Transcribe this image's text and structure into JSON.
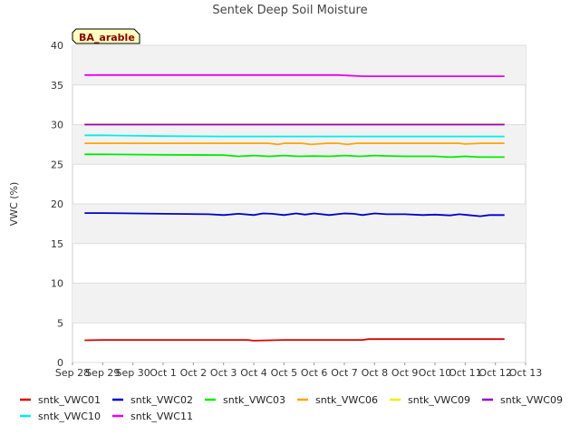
{
  "chart_data": {
    "type": "line",
    "title": "Sentek Deep Soil Moisture",
    "ylabel": "VWC (%)",
    "xlabel": "",
    "badge": "BA_arable",
    "ylim": [
      0,
      40
    ],
    "yticks": [
      "0",
      "5",
      "10",
      "15",
      "20",
      "25",
      "30",
      "35",
      "40"
    ],
    "xlim": [
      0,
      15
    ],
    "xticks": [
      "Sep 28",
      "Sep 29",
      "Sep 30",
      "Oct 1",
      "Oct 2",
      "Oct 3",
      "Oct 4",
      "Oct 5",
      "Oct 6",
      "Oct 7",
      "Oct 8",
      "Oct 9",
      "Oct 10",
      "Oct 11",
      "Oct 12",
      "Oct 13"
    ],
    "grid": true,
    "legend": "bottom",
    "series": [
      {
        "name": "sntk_VWC01",
        "color": "#dd0000",
        "x": [
          0.4,
          1,
          3,
          5,
          5.8,
          6,
          7,
          8,
          9,
          9.6,
          9.8,
          11,
          12,
          13,
          14.3
        ],
        "y": [
          2.8,
          2.85,
          2.85,
          2.85,
          2.85,
          2.75,
          2.85,
          2.85,
          2.85,
          2.85,
          2.95,
          2.95,
          2.95,
          2.95,
          2.95
        ]
      },
      {
        "name": "sntk_VWC02",
        "color": "#0000cc",
        "x": [
          0.4,
          1,
          3,
          4.5,
          5,
          5.5,
          6,
          6.3,
          6.6,
          7,
          7.4,
          7.7,
          8,
          8.5,
          9,
          9.3,
          9.6,
          10,
          10.4,
          11,
          11.6,
          12,
          12.5,
          12.8,
          13.1,
          13.5,
          13.8,
          14.3
        ],
        "y": [
          18.85,
          18.85,
          18.75,
          18.7,
          18.6,
          18.75,
          18.6,
          18.8,
          18.75,
          18.6,
          18.8,
          18.65,
          18.8,
          18.6,
          18.8,
          18.75,
          18.6,
          18.8,
          18.7,
          18.7,
          18.6,
          18.65,
          18.55,
          18.7,
          18.6,
          18.45,
          18.6,
          18.6
        ]
      },
      {
        "name": "sntk_VWC03",
        "color": "#00ee00",
        "x": [
          0.4,
          1,
          3,
          5,
          5.5,
          6,
          6.5,
          7,
          7.5,
          8,
          8.5,
          9,
          9.5,
          10,
          10.5,
          11,
          11.5,
          12,
          12.5,
          13,
          13.5,
          14.3
        ],
        "y": [
          26.25,
          26.25,
          26.2,
          26.15,
          26.0,
          26.1,
          26.0,
          26.1,
          26.0,
          26.05,
          26.0,
          26.1,
          26.0,
          26.1,
          26.05,
          26.0,
          26.0,
          26.0,
          25.9,
          26.0,
          25.9,
          25.9
        ]
      },
      {
        "name": "sntk_VWC06",
        "color": "#ffa500",
        "x": [
          0.4,
          1,
          3,
          5,
          6.5,
          6.8,
          7,
          7.6,
          7.9,
          8.4,
          8.8,
          9.1,
          9.4,
          10,
          11,
          12,
          12.8,
          13,
          13.5,
          14.3
        ],
        "y": [
          27.65,
          27.65,
          27.65,
          27.65,
          27.65,
          27.5,
          27.65,
          27.65,
          27.5,
          27.65,
          27.65,
          27.5,
          27.65,
          27.65,
          27.65,
          27.65,
          27.65,
          27.55,
          27.65,
          27.65
        ]
      },
      {
        "name": "sntk_VWC09",
        "color": "#eeee00",
        "x": [
          0.4,
          14.3
        ],
        "y": [
          30.05,
          30.05
        ]
      },
      {
        "name": "sntk_VWC09",
        "color": "#9900cc",
        "x": [
          0.4,
          3,
          6,
          9,
          12,
          14.3
        ],
        "y": [
          30.0,
          30.0,
          30.0,
          30.0,
          30.0,
          30.0
        ]
      },
      {
        "name": "sntk_VWC10",
        "color": "#00eeee",
        "x": [
          0.4,
          1,
          3,
          5,
          7,
          9,
          11,
          13,
          14.3
        ],
        "y": [
          28.65,
          28.65,
          28.55,
          28.5,
          28.5,
          28.5,
          28.5,
          28.5,
          28.5
        ]
      },
      {
        "name": "sntk_VWC11",
        "color": "#ee00ee",
        "x": [
          0.4,
          1,
          3,
          5,
          7,
          8.8,
          9.6,
          11,
          13,
          14.3
        ],
        "y": [
          36.25,
          36.25,
          36.25,
          36.25,
          36.25,
          36.25,
          36.1,
          36.1,
          36.1,
          36.1
        ]
      }
    ]
  }
}
